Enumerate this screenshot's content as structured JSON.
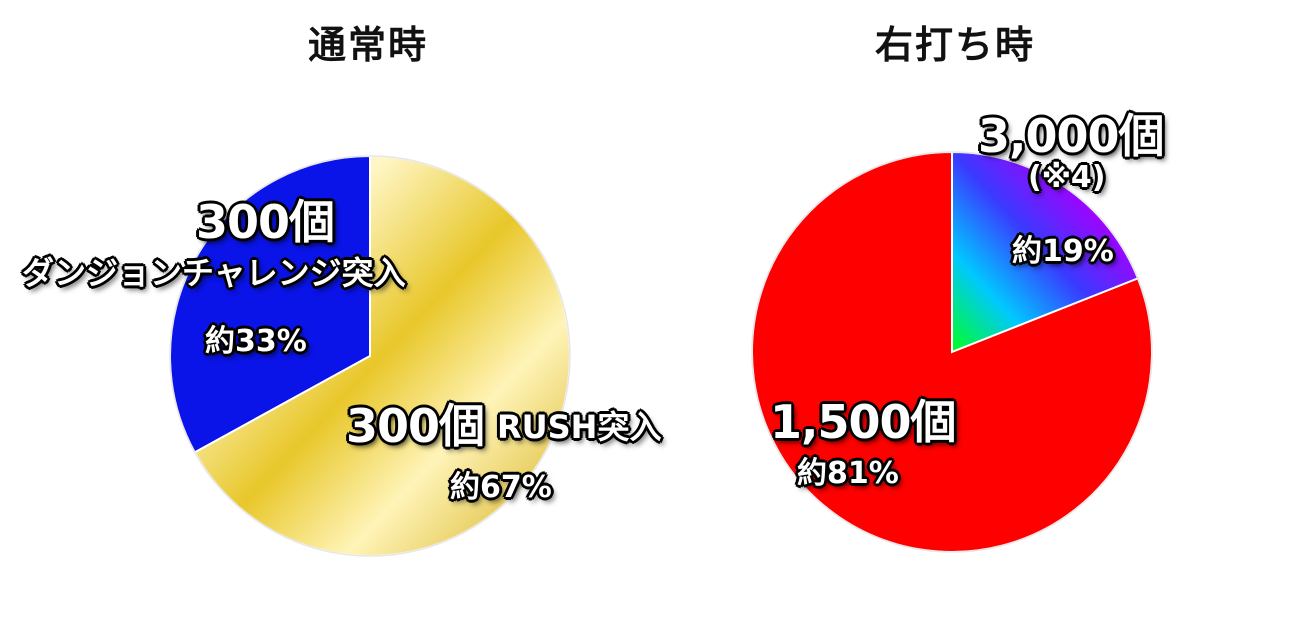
{
  "chart_data": [
    {
      "type": "pie",
      "title": "通常時",
      "slices": [
        {
          "label_value": "300個",
          "label_desc": "ダンジョンチャレンジ突入",
          "percent_label": "約33%",
          "value": 33,
          "color": "#0a14e8"
        },
        {
          "label_value": "300個",
          "label_desc": "RUSH突入",
          "percent_label": "約67%",
          "value": 67,
          "color": "#e8c72a"
        }
      ]
    },
    {
      "type": "pie",
      "title": "右打ち時",
      "slices": [
        {
          "label_value": "3,000個",
          "label_desc": "(※4)",
          "percent_label": "約19%",
          "value": 19,
          "color": "rainbow"
        },
        {
          "label_value": "1,500個",
          "label_desc": "",
          "percent_label": "約81%",
          "value": 81,
          "color": "#ff0000"
        }
      ]
    }
  ]
}
